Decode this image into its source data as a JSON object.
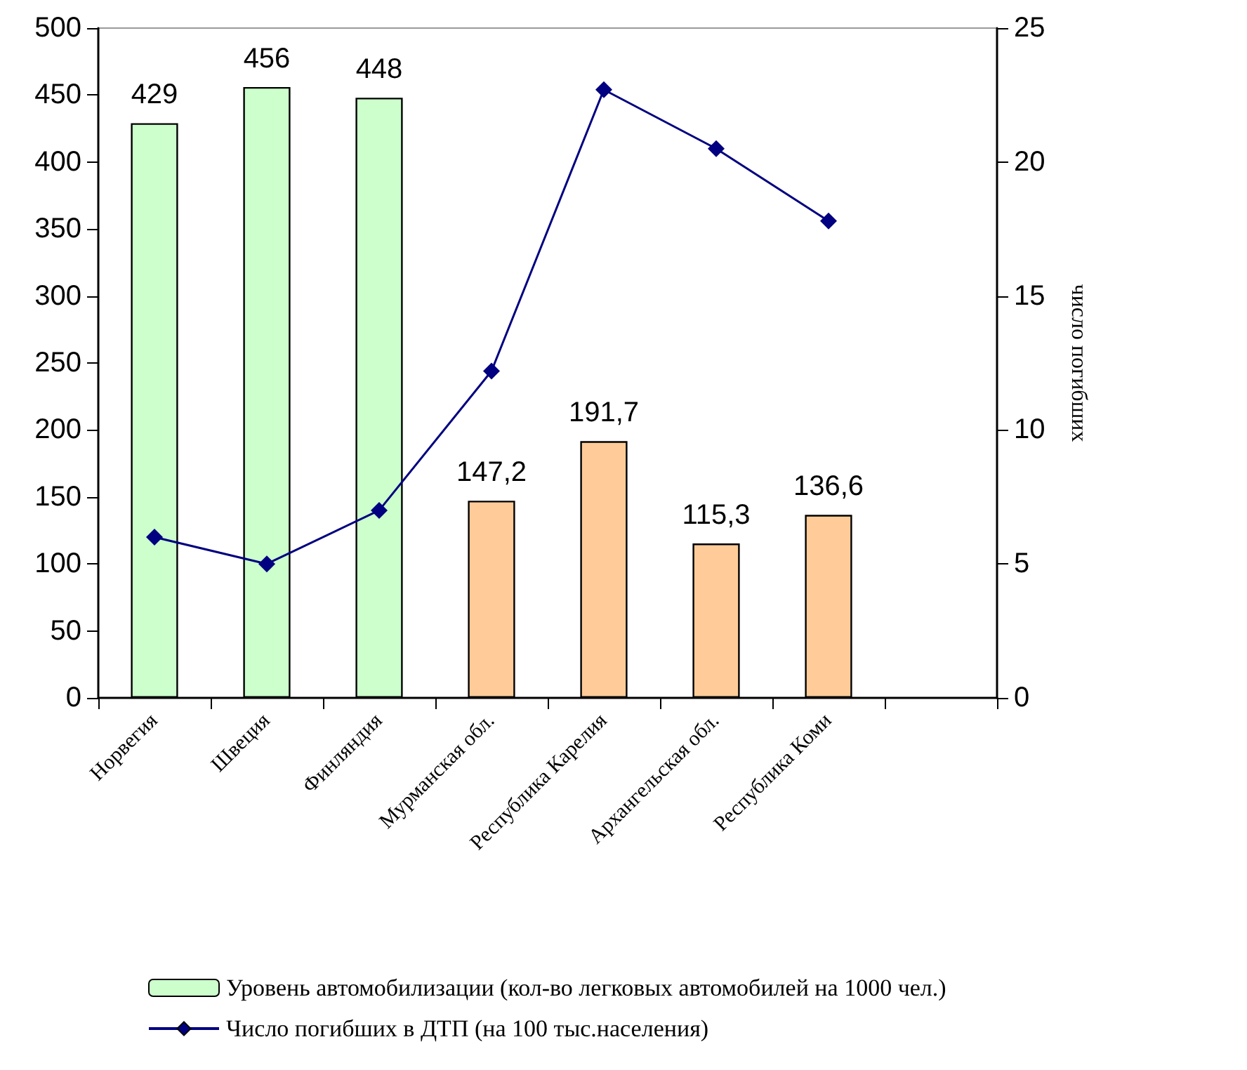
{
  "chart_data": {
    "type": "bar",
    "categories": [
      "Норвегия",
      "Швеция",
      "Финляндия",
      "Мурманская обл.",
      "Республика Карелия",
      "Архангельская обл.",
      "Республика Коми",
      null
    ],
    "series": [
      {
        "name": "Уровень автомобилизации (кол-во легковых автомобилей на 1000 чел.)",
        "color": "#ccffcc",
        "colors": [
          "#ccffcc",
          "#ccffcc",
          "#ccffcc",
          "#ffcc99",
          "#ffcc99",
          "#ffcc99",
          "#ffcc99",
          null
        ],
        "values": [
          429,
          456,
          448,
          147.2,
          191.7,
          115.3,
          136.6,
          null
        ],
        "value_labels": [
          "429",
          "456",
          "448",
          "147,2",
          "191,7",
          "115,3",
          "136,6",
          null
        ]
      },
      {
        "name": "Число погибших в ДТП (на 100 тыс.населения)",
        "type": "line",
        "axis": "y2",
        "color": "#000080",
        "marker": "diamond",
        "values": [
          6.0,
          5.0,
          7.0,
          12.2,
          22.7,
          20.5,
          17.8,
          null
        ]
      }
    ],
    "y2label": "число погибших",
    "ylim": [
      0,
      500
    ],
    "yticks": [
      0,
      50,
      100,
      150,
      200,
      250,
      300,
      350,
      400,
      450,
      500
    ],
    "y2lim": [
      0,
      25
    ],
    "y2ticks": [
      0,
      5,
      10,
      15,
      20,
      25
    ],
    "grid": false,
    "legend": "bottom"
  }
}
